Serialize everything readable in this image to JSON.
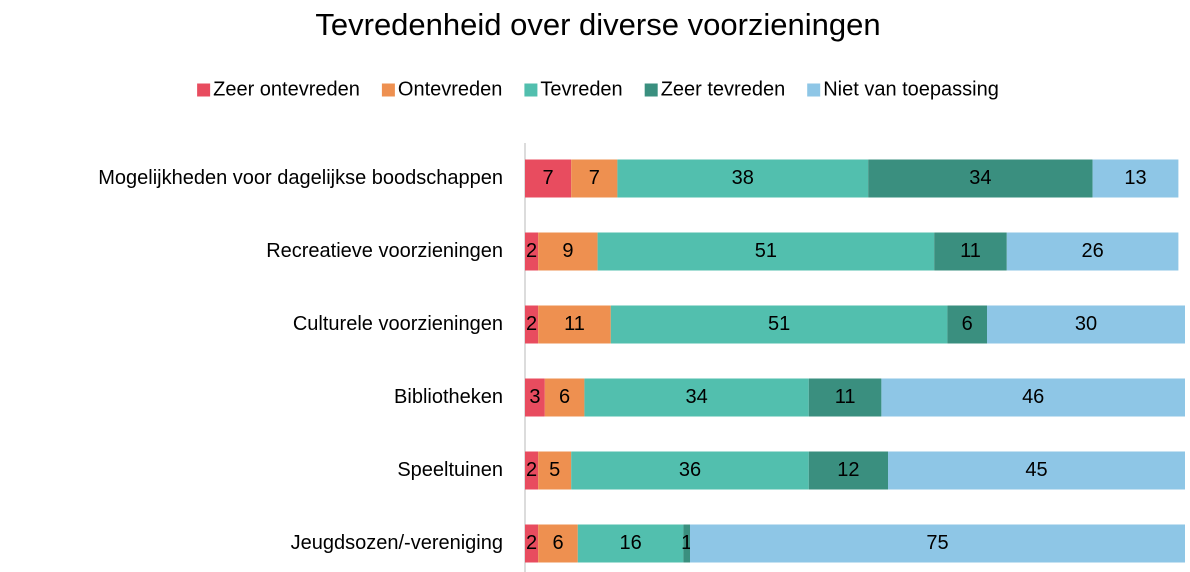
{
  "chart_data": {
    "type": "stacked-barh",
    "title": "Tevredenheid over diverse voorzieningen",
    "categories": [
      "Mogelijkheden voor dagelijkse boodschappen",
      "Recreatieve voorzieningen",
      "Culturele voorzieningen",
      "Bibliotheken",
      "Speeltuinen",
      "Jeugdsozen/-vereniging"
    ],
    "series": [
      {
        "name": "Zeer ontevreden",
        "color": "#e84c5f",
        "values": [
          7,
          2,
          2,
          3,
          2,
          2
        ]
      },
      {
        "name": "Ontevreden",
        "color": "#ee9050",
        "values": [
          7,
          9,
          11,
          6,
          5,
          6
        ]
      },
      {
        "name": "Tevreden",
        "color": "#52bfae",
        "values": [
          38,
          51,
          51,
          34,
          36,
          16
        ]
      },
      {
        "name": "Zeer tevreden",
        "color": "#3a8f7f",
        "values": [
          34,
          11,
          6,
          11,
          12,
          1
        ]
      },
      {
        "name": "Niet van toepassing",
        "color": "#8ec6e6",
        "values": [
          13,
          26,
          30,
          46,
          45,
          75
        ]
      }
    ],
    "xlim": [
      0,
      100
    ],
    "legend": "top"
  }
}
